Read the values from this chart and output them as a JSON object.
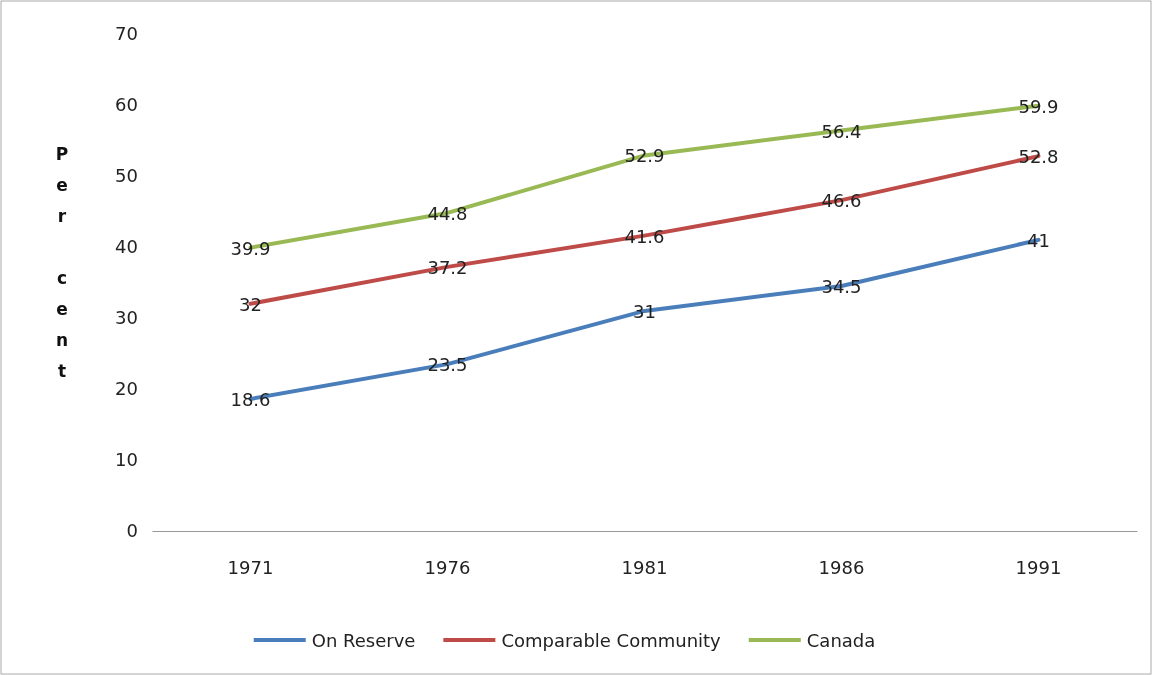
{
  "chart_data": {
    "type": "line",
    "ylabel": "Per cent",
    "categories": [
      "1971",
      "1976",
      "1981",
      "1986",
      "1991"
    ],
    "series": [
      {
        "name": "On Reserve",
        "color": "#4a7ebb",
        "values": [
          18.6,
          23.5,
          31,
          34.5,
          41
        ]
      },
      {
        "name": "Comparable Community",
        "color": "#be4b48",
        "values": [
          32,
          37.2,
          41.6,
          46.6,
          52.8
        ]
      },
      {
        "name": "Canada",
        "color": "#98b954",
        "values": [
          39.9,
          44.8,
          52.9,
          56.4,
          59.9
        ]
      }
    ],
    "ylim": [
      0,
      70
    ],
    "yticks": [
      0,
      10,
      20,
      30,
      40,
      50,
      60,
      70
    ],
    "grid": false,
    "legend": "bottom",
    "data_labels": true,
    "marker": "none",
    "line_style": "solid"
  }
}
